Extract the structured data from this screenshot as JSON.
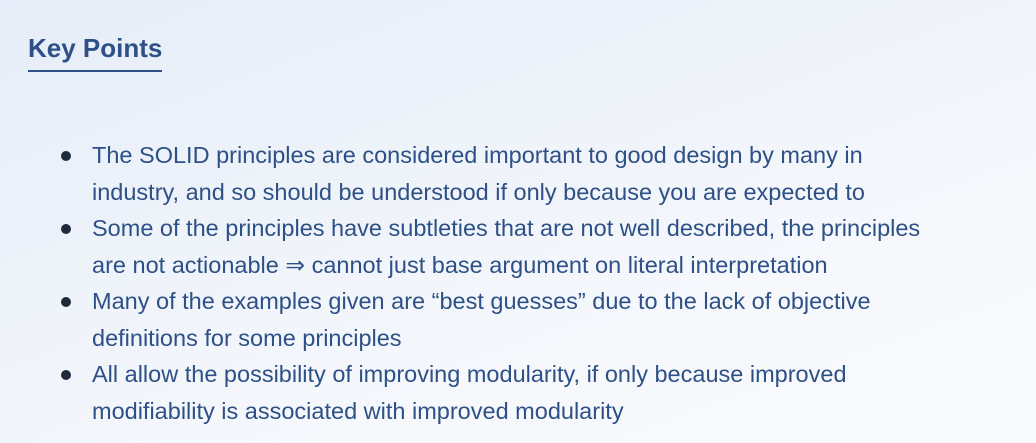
{
  "title": "Key Points",
  "bullets": [
    {
      "lines": [
        "The SOLID principles are considered important to good design by many in",
        "industry, and so should be understood if only because you are expected to"
      ]
    },
    {
      "lines": [
        "Some of the principles have subtleties that are not well described, the principles",
        "are not actionable ⇒ cannot just base argument on literal interpretation"
      ]
    },
    {
      "lines": [
        "Many of the examples given are “best guesses” due to the lack of objective",
        "definitions for some principles"
      ]
    },
    {
      "lines": [
        "All allow the possibility of improving modularity, if only because improved",
        "modifiability is associated with improved modularity"
      ]
    }
  ]
}
